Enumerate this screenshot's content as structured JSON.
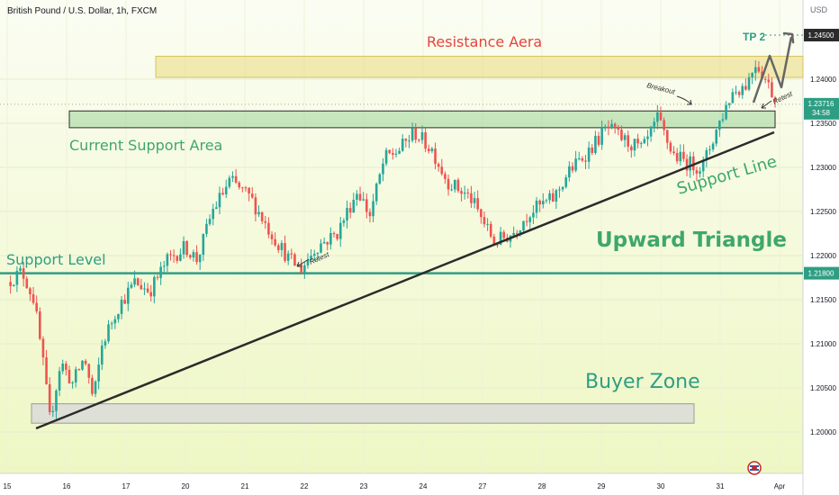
{
  "header": {
    "symbol": "British Pound / U.S. Dollar, 1h, FXCM",
    "currency": "USD"
  },
  "chart_data": {
    "type": "candlestick",
    "symbol": "British Pound / U.S. Dollar",
    "timeframe": "1h",
    "source": "FXCM",
    "price_axis": {
      "ylim": [
        1.196,
        1.2495
      ],
      "ticks": [
        "1.24000",
        "1.23500",
        "1.23000",
        "1.22500",
        "1.22000",
        "1.21500",
        "1.21000",
        "1.20500",
        "1.20000"
      ]
    },
    "time_axis": {
      "ticks": [
        {
          "label": "15",
          "day": 0
        },
        {
          "label": "16",
          "day": 1
        },
        {
          "label": "17",
          "day": 2
        },
        {
          "label": "20",
          "day": 3
        },
        {
          "label": "21",
          "day": 4
        },
        {
          "label": "22",
          "day": 5
        },
        {
          "label": "23",
          "day": 6
        },
        {
          "label": "24",
          "day": 7
        },
        {
          "label": "27",
          "day": 8
        },
        {
          "label": "28",
          "day": 9
        },
        {
          "label": "29",
          "day": 10
        },
        {
          "label": "30",
          "day": 11
        },
        {
          "label": "31",
          "day": 12
        },
        {
          "label": "Apr",
          "day": 13
        }
      ]
    },
    "price_path": [
      [
        0.0,
        1.217
      ],
      [
        0.25,
        1.2182
      ],
      [
        0.45,
        1.215
      ],
      [
        0.6,
        1.208
      ],
      [
        0.72,
        1.2012
      ],
      [
        0.9,
        1.208
      ],
      [
        1.1,
        1.2055
      ],
      [
        1.3,
        1.2085
      ],
      [
        1.45,
        1.2035
      ],
      [
        1.6,
        1.21
      ],
      [
        1.85,
        1.214
      ],
      [
        2.15,
        1.217
      ],
      [
        2.4,
        1.216
      ],
      [
        2.7,
        1.2195
      ],
      [
        3.0,
        1.221
      ],
      [
        3.2,
        1.2195
      ],
      [
        3.45,
        1.225
      ],
      [
        3.75,
        1.2285
      ],
      [
        4.1,
        1.2265
      ],
      [
        4.4,
        1.223
      ],
      [
        4.75,
        1.2195
      ],
      [
        4.95,
        1.2185
      ],
      [
        5.2,
        1.221
      ],
      [
        5.55,
        1.2225
      ],
      [
        5.9,
        1.2275
      ],
      [
        6.1,
        1.2245
      ],
      [
        6.35,
        1.231
      ],
      [
        6.6,
        1.232
      ],
      [
        6.85,
        1.234
      ],
      [
        7.15,
        1.232
      ],
      [
        7.4,
        1.2285
      ],
      [
        7.8,
        1.2265
      ],
      [
        8.2,
        1.2215
      ],
      [
        8.5,
        1.2225
      ],
      [
        8.8,
        1.225
      ],
      [
        9.2,
        1.2265
      ],
      [
        9.45,
        1.2295
      ],
      [
        9.8,
        1.232
      ],
      [
        10.1,
        1.2345
      ],
      [
        10.4,
        1.233
      ],
      [
        10.7,
        1.232
      ],
      [
        10.95,
        1.2355
      ],
      [
        11.2,
        1.2315
      ],
      [
        11.45,
        1.2305
      ],
      [
        11.7,
        1.23
      ],
      [
        11.95,
        1.2345
      ],
      [
        12.2,
        1.2385
      ],
      [
        12.45,
        1.2395
      ],
      [
        12.6,
        1.242
      ],
      [
        12.8,
        1.2395
      ],
      [
        12.95,
        1.2375
      ]
    ],
    "last_price": {
      "value": "1.23716",
      "countdown": "34:58",
      "price": 1.23716
    },
    "levels": [
      {
        "name": "Support Level",
        "label": "1.21800",
        "price": 1.218,
        "color": "#2e9e83"
      },
      {
        "name": "TP 2",
        "label": "1.24500",
        "price": 1.245,
        "color": "#1e2a3a"
      }
    ],
    "zones": [
      {
        "name": "Resistance Aera",
        "from": 1.2402,
        "to": 1.2426,
        "color": "#ead97f"
      },
      {
        "name": "Current Support Area",
        "from": 1.2345,
        "to": 1.2364,
        "color": "#9fd49a"
      },
      {
        "name": "Buyer Zone",
        "from": 1.201,
        "to": 1.2032,
        "color": "#d9d9d9"
      }
    ],
    "annotations": {
      "resistance": "Resistance Aera",
      "support_area": "Current Support Area",
      "support_level": "Support Level",
      "pattern": "Upward Triangle",
      "support_line": "Support Line",
      "buyer_zone": "Buyer Zone",
      "tp2": "TP 2",
      "breakout": "Breakout",
      "retest_1": "Retest",
      "retest_2": "Retest"
    },
    "colors": {
      "up": "#26a69a",
      "down": "#ef5350",
      "accent_red": "#e5433f",
      "accent_green": "#3fa76b",
      "teal": "#2e9e83",
      "support_line": "#2b2b2b"
    }
  }
}
